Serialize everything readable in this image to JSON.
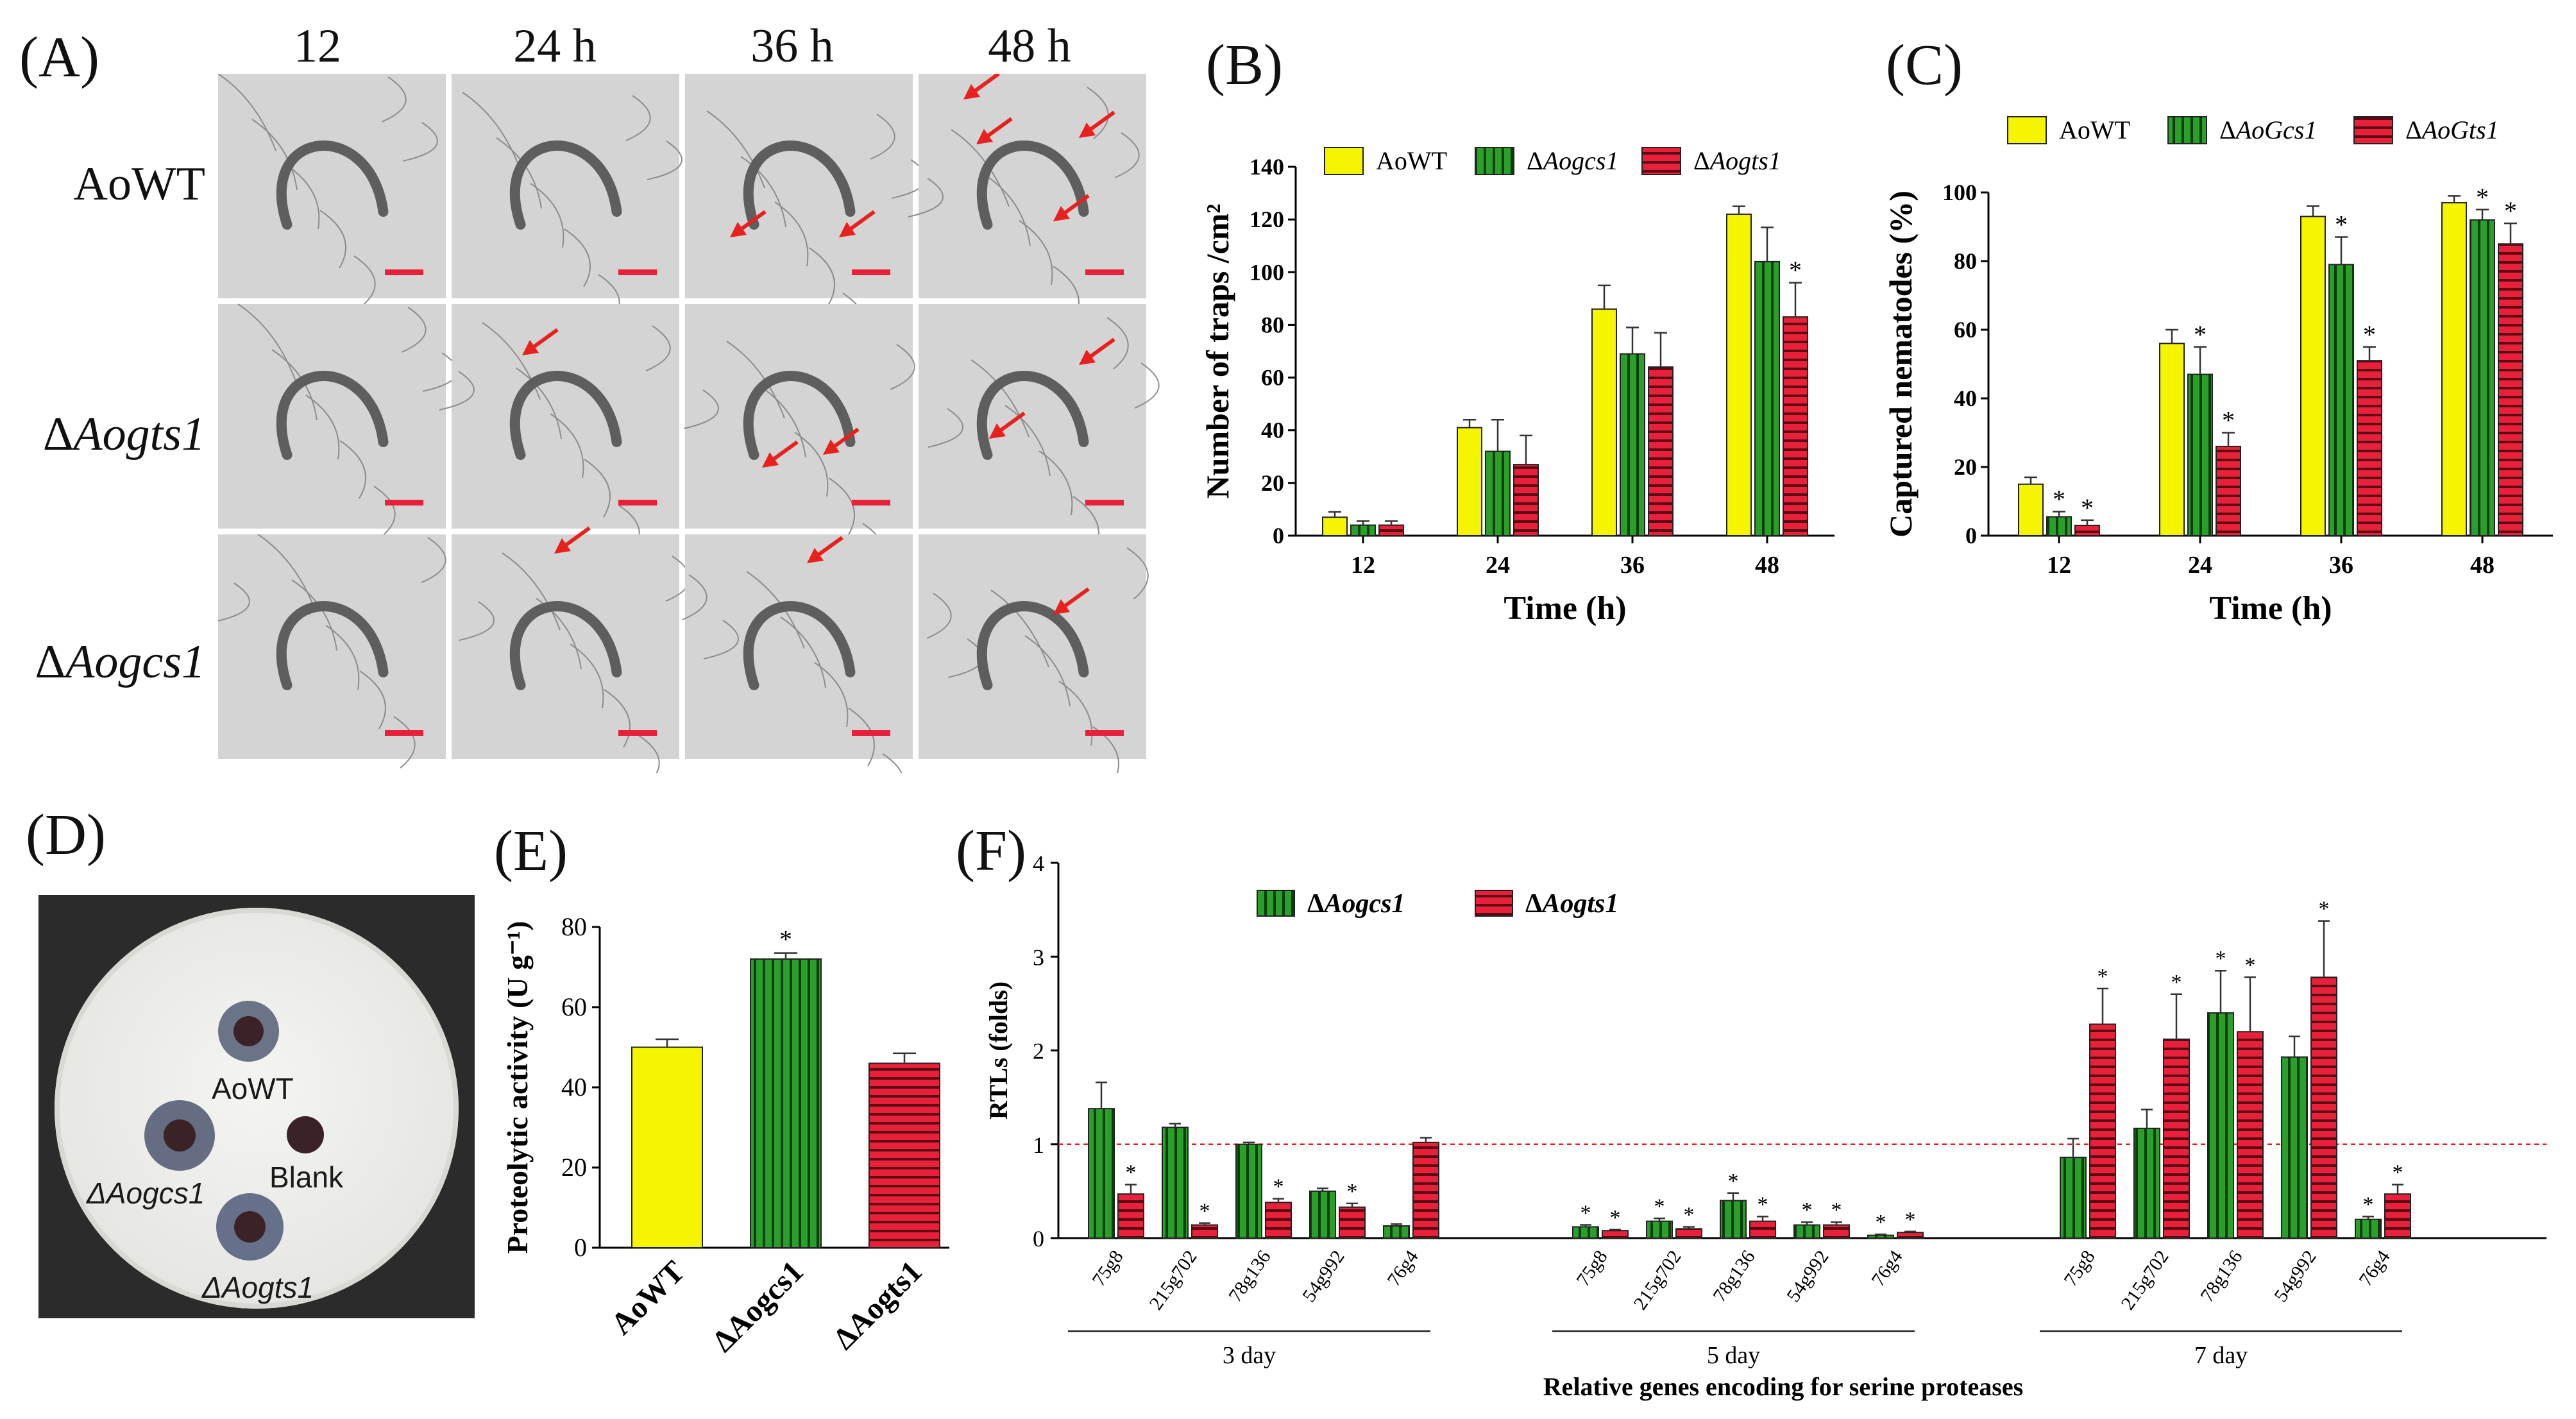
{
  "panel_labels": {
    "A": "(A)",
    "B": "(B)",
    "C": "(C)",
    "D": "(D)",
    "E": "(E)",
    "F": "(F)"
  },
  "grid": {
    "columns": [
      "12",
      "24 h",
      "36 h",
      "48 h"
    ],
    "rows": [
      {
        "prefix": "",
        "name": "AoWT"
      },
      {
        "prefix": "Δ",
        "name": "Aogts1"
      },
      {
        "prefix": "Δ",
        "name": "Aogcs1"
      }
    ]
  },
  "plate": {
    "labels": [
      "AoWT",
      "Blank",
      "ΔAogcs1",
      "ΔAogts1"
    ]
  },
  "colors": {
    "yellow": "#f5f500",
    "green": "#2aa02a",
    "red": "#e8203a",
    "dash": "#e02020",
    "arrow": "#e8201e"
  },
  "chart_data": [
    {
      "id": "B",
      "type": "bar",
      "ylabel": "Number of traps /cm²",
      "xlabel": "Time (h)",
      "categories": [
        "12",
        "24",
        "36",
        "48"
      ],
      "ylim": [
        0,
        140
      ],
      "yticks": [
        0,
        20,
        40,
        60,
        80,
        100,
        120,
        140
      ],
      "series": [
        {
          "name": "AoWT",
          "values": [
            7,
            41,
            86,
            122
          ],
          "errors": [
            2,
            3,
            9,
            3
          ],
          "sig": [
            false,
            false,
            false,
            false
          ]
        },
        {
          "name": "ΔAogcs1",
          "values": [
            4,
            32,
            69,
            104
          ],
          "errors": [
            1.5,
            12,
            10,
            13
          ],
          "sig": [
            false,
            false,
            false,
            false
          ]
        },
        {
          "name": "ΔAogts1",
          "values": [
            4,
            27,
            64,
            83
          ],
          "errors": [
            1.5,
            11,
            13,
            13
          ],
          "sig": [
            false,
            false,
            false,
            true
          ]
        }
      ]
    },
    {
      "id": "C",
      "type": "bar",
      "ylabel": "Captured nematodes (%)",
      "xlabel": "Time (h)",
      "categories": [
        "12",
        "24",
        "36",
        "48"
      ],
      "ylim": [
        0,
        100
      ],
      "yticks": [
        0,
        20,
        40,
        60,
        80,
        100
      ],
      "series": [
        {
          "name": "AoWT",
          "values": [
            15,
            56,
            93,
            97
          ],
          "errors": [
            2,
            4,
            3,
            2
          ],
          "sig": [
            false,
            false,
            false,
            false
          ]
        },
        {
          "name": "ΔAoGcs1",
          "values": [
            5.5,
            47,
            79,
            92
          ],
          "errors": [
            1.5,
            8,
            8,
            3
          ],
          "sig": [
            true,
            true,
            true,
            true
          ]
        },
        {
          "name": "ΔAoGts1",
          "values": [
            3,
            26,
            51,
            85
          ],
          "errors": [
            1.5,
            4,
            4,
            6
          ],
          "sig": [
            true,
            true,
            true,
            true
          ]
        }
      ]
    },
    {
      "id": "E",
      "type": "bar",
      "ylabel": "Proteolytic activity (U g⁻¹)",
      "categories": [
        "AoWT",
        "ΔAogcs1",
        "ΔAogts1"
      ],
      "ylim": [
        0,
        80
      ],
      "yticks": [
        0,
        20,
        40,
        60,
        80
      ],
      "values": [
        50,
        72,
        46
      ],
      "errors": [
        2,
        1.5,
        2.5
      ],
      "sig": [
        false,
        true,
        false
      ]
    },
    {
      "id": "F",
      "type": "bar",
      "ylabel": "RTLs (folds)",
      "xlabel": "Relative genes encoding for serine proteases",
      "ylim": [
        0,
        4
      ],
      "yticks": [
        0,
        1,
        2,
        3,
        4
      ],
      "reference_line": 1,
      "genes": [
        "75g8",
        "215g702",
        "78g136",
        "54g992",
        "76g4"
      ],
      "groups": [
        "3 day",
        "5 day",
        "7 day"
      ],
      "series": [
        {
          "name": "ΔAogcs1",
          "values": [
            [
              1.38,
              1.18,
              1.0,
              0.5,
              0.13
            ],
            [
              0.12,
              0.18,
              0.4,
              0.14,
              0.03
            ],
            [
              0.86,
              1.17,
              2.4,
              1.93,
              0.2
            ]
          ],
          "errors": [
            [
              0.28,
              0.04,
              0.02,
              0.03,
              0.02
            ],
            [
              0.02,
              0.03,
              0.08,
              0.03,
              0.01
            ],
            [
              0.2,
              0.2,
              0.45,
              0.22,
              0.03
            ]
          ],
          "sig": [
            [
              false,
              false,
              false,
              false,
              false
            ],
            [
              true,
              true,
              true,
              true,
              true
            ],
            [
              false,
              false,
              true,
              false,
              true
            ]
          ]
        },
        {
          "name": "ΔAogts1",
          "values": [
            [
              0.47,
              0.14,
              0.38,
              0.33,
              1.02
            ],
            [
              0.08,
              0.1,
              0.18,
              0.14,
              0.06
            ],
            [
              2.28,
              2.12,
              2.2,
              2.78,
              0.47
            ]
          ],
          "errors": [
            [
              0.1,
              0.02,
              0.04,
              0.04,
              0.05
            ],
            [
              0.01,
              0.02,
              0.05,
              0.03,
              0.01
            ],
            [
              0.38,
              0.48,
              0.58,
              0.6,
              0.1
            ]
          ],
          "sig": [
            [
              true,
              true,
              true,
              true,
              false
            ],
            [
              true,
              true,
              true,
              true,
              true
            ],
            [
              true,
              true,
              true,
              true,
              true
            ]
          ]
        }
      ]
    }
  ]
}
